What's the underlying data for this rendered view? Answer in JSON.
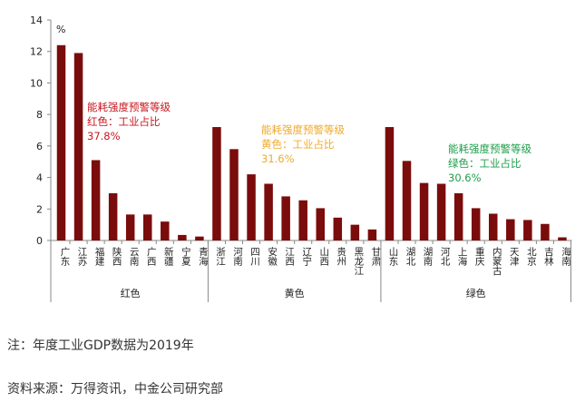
{
  "chart_data": {
    "type": "bar",
    "unit": "%",
    "ylim": [
      0,
      14
    ],
    "yticks": [
      0,
      2,
      4,
      6,
      8,
      10,
      12,
      14
    ],
    "grid": false,
    "bar_color": "#7B0C0C",
    "groups": [
      {
        "name": "红色",
        "annotation": [
          "能耗强度预警等级",
          "红色：工业占比",
          "37.8%"
        ],
        "annotation_color": "#C8161D",
        "categories": [
          "广东",
          "江苏",
          "福建",
          "陕西",
          "云南",
          "广西",
          "新疆",
          "宁夏",
          "青海"
        ],
        "values": [
          12.4,
          11.9,
          5.1,
          3.0,
          1.65,
          1.65,
          1.2,
          0.35,
          0.25
        ]
      },
      {
        "name": "黄色",
        "annotation": [
          "能耗强度预警等级",
          "黄色：工业占比",
          "31.6%"
        ],
        "annotation_color": "#F0A92B",
        "categories": [
          "浙江",
          "河南",
          "四川",
          "安徽",
          "江西",
          "辽宁",
          "山西",
          "贵州",
          "黑龙江",
          "甘肃"
        ],
        "values": [
          7.2,
          5.8,
          4.2,
          3.6,
          2.8,
          2.55,
          2.05,
          1.45,
          1.0,
          0.7
        ]
      },
      {
        "name": "绿色",
        "annotation": [
          "能耗强度预警等级",
          "绿色：工业占比",
          "30.6%"
        ],
        "annotation_color": "#1E9E4A",
        "categories": [
          "山东",
          "湖北",
          "湖南",
          "河北",
          "上海",
          "重庆",
          "内蒙古",
          "天津",
          "北京",
          "吉林",
          "海南"
        ],
        "values": [
          7.2,
          5.05,
          3.65,
          3.6,
          3.0,
          2.05,
          1.7,
          1.35,
          1.3,
          1.05,
          0.2
        ]
      }
    ]
  },
  "notes": {
    "note": "注：年度工业GDP数据为2019年",
    "source": "资料来源：万得资讯，中金公司研究部"
  }
}
